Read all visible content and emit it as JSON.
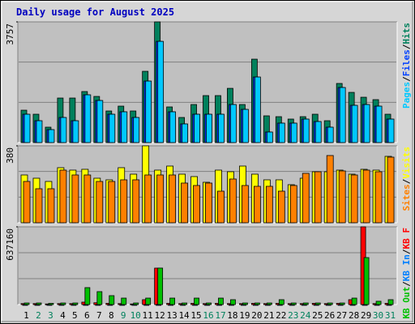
{
  "separator": "/",
  "chart_data": [
    {
      "type": "bar",
      "title": "Daily usage for August 2025",
      "series": [
        {
          "name": "Hits",
          "color": "#00805C",
          "values": [
            1008,
            882,
            479,
            1386,
            1386,
            1588,
            1436,
            983,
            1134,
            983,
            2218,
            3757,
            1109,
            781,
            1184,
            1462,
            1462,
            1688,
            1184,
            2596,
            832,
            806,
            731,
            806,
            882,
            680,
            1840,
            1562,
            1411,
            1336,
            882
          ]
        },
        {
          "name": "Files",
          "color": "#0040FF",
          "values": [
            882,
            680,
            403,
            781,
            680,
            1487,
            1310,
            882,
            958,
            781,
            1915,
            3150,
            958,
            580,
            882,
            882,
            882,
            1184,
            1033,
            2041,
            328,
            605,
            605,
            731,
            655,
            479,
            1714,
            1159,
            1184,
            1134,
            731
          ]
        },
        {
          "name": "Pages",
          "color": "#00C8FF",
          "values": [
            882,
            680,
            403,
            781,
            680,
            1487,
            1310,
            882,
            958,
            781,
            1915,
            3150,
            958,
            580,
            882,
            882,
            882,
            1184,
            1033,
            2041,
            328,
            605,
            605,
            731,
            655,
            479,
            1714,
            1159,
            1184,
            1134,
            731
          ]
        }
      ],
      "ylim": [
        0,
        3757
      ],
      "yticks": [
        3757
      ],
      "grid": true
    },
    {
      "type": "bar",
      "series": [
        {
          "name": "Visits",
          "color": "#FFFF00",
          "values": [
            236,
            220,
            204,
            272,
            260,
            264,
            220,
            212,
            272,
            240,
            380,
            260,
            280,
            240,
            228,
            200,
            260,
            252,
            280,
            240,
            212,
            212,
            188,
            220,
            252,
            252,
            260,
            240,
            264,
            260,
            328
          ]
        },
        {
          "name": "Sites",
          "color": "#FF8000",
          "values": [
            204,
            168,
            168,
            260,
            236,
            236,
            204,
            204,
            212,
            212,
            236,
            236,
            236,
            196,
            184,
            196,
            156,
            216,
            184,
            180,
            180,
            156,
            184,
            244,
            252,
            332,
            256,
            236,
            260,
            252,
            324
          ]
        }
      ],
      "ylim": [
        0,
        380
      ],
      "yticks": [
        380
      ],
      "grid": true
    },
    {
      "type": "bar",
      "categories": [
        "1",
        "2",
        "3",
        "4",
        "5",
        "6",
        "7",
        "8",
        "9",
        "10",
        "11",
        "12",
        "13",
        "14",
        "15",
        "16",
        "17",
        "18",
        "19",
        "20",
        "21",
        "22",
        "23",
        "24",
        "25",
        "26",
        "27",
        "28",
        "29",
        "30",
        "31"
      ],
      "category_colors": [
        "#000000",
        "#00805C",
        "#00805C",
        "#000000",
        "#000000",
        "#000000",
        "#000000",
        "#000000",
        "#00805C",
        "#00805C",
        "#000000",
        "#000000",
        "#000000",
        "#000000",
        "#000000",
        "#00805C",
        "#00805C",
        "#000000",
        "#000000",
        "#000000",
        "#000000",
        "#000000",
        "#00805C",
        "#00805C",
        "#000000",
        "#000000",
        "#000000",
        "#000000",
        "#000000",
        "#00805C",
        "#00805C"
      ],
      "series": [
        {
          "name": "KB F",
          "color": "#FF0000",
          "values": [
            8000,
            8000,
            5000,
            8000,
            8000,
            20000,
            15000,
            10000,
            8000,
            5000,
            40000,
            298700,
            10000,
            8000,
            10000,
            8000,
            10000,
            8000,
            8000,
            10000,
            8000,
            10000,
            8000,
            8000,
            10000,
            8000,
            10000,
            40000,
            637160,
            8000,
            10000
          ]
        },
        {
          "name": "KB In",
          "color": "#0080FF",
          "values": [
            0,
            0,
            0,
            0,
            0,
            0,
            0,
            0,
            0,
            0,
            0,
            0,
            0,
            0,
            0,
            0,
            0,
            0,
            0,
            0,
            0,
            0,
            0,
            0,
            0,
            0,
            0,
            0,
            0,
            0,
            0
          ]
        },
        {
          "name": "KB Out",
          "color": "#00C000",
          "values": [
            13000,
            13000,
            10000,
            13000,
            13000,
            139000,
            106000,
            73000,
            53000,
            13000,
            53000,
            299000,
            53000,
            13000,
            53000,
            13000,
            53000,
            40000,
            13000,
            13000,
            13000,
            40000,
            13000,
            13000,
            13000,
            13000,
            13000,
            53000,
            385000,
            27000,
            40000
          ]
        }
      ],
      "ylim": [
        0,
        637160
      ],
      "yticks": [
        637160
      ],
      "grid": true
    }
  ]
}
